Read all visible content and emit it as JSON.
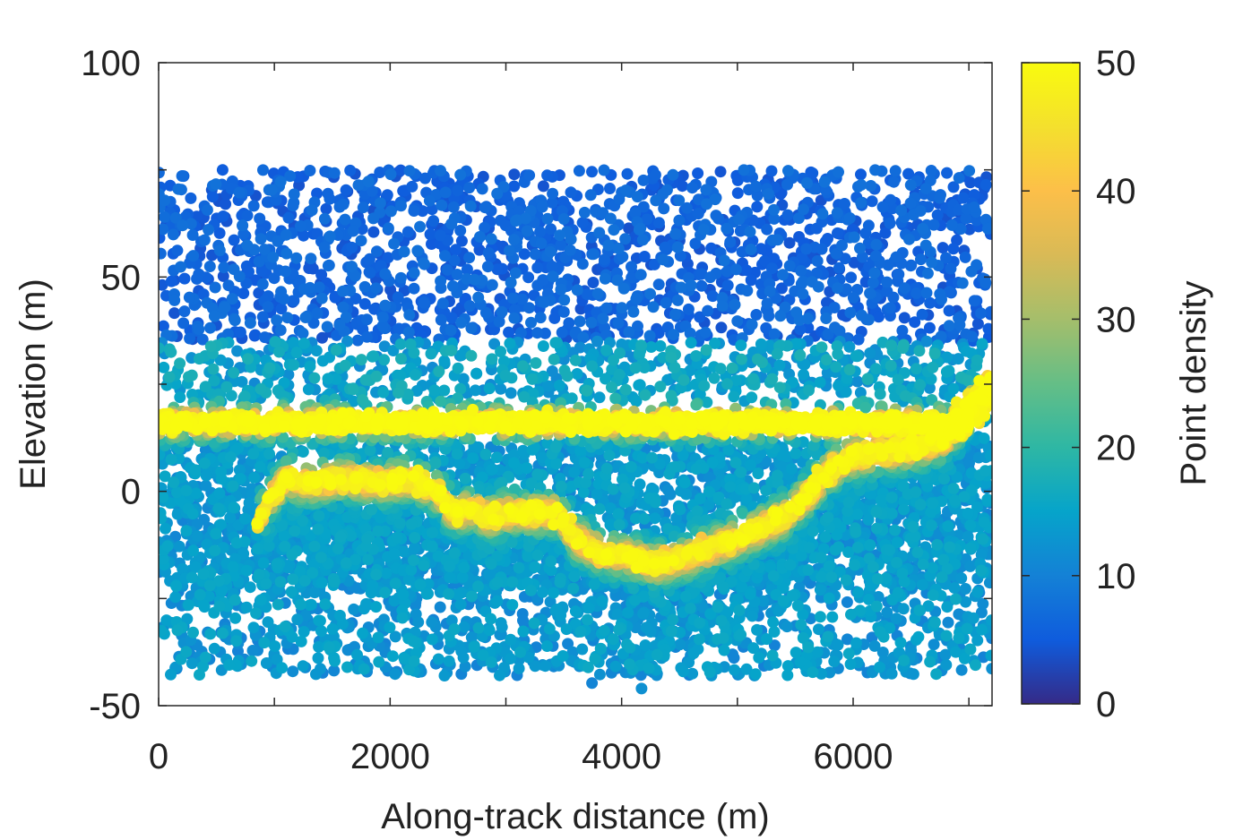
{
  "chart_data": {
    "type": "scatter",
    "xlabel": "Along-track distance (m)",
    "ylabel": "Elevation (m)",
    "xlim": [
      0,
      7200
    ],
    "ylim": [
      -50,
      100
    ],
    "xticks": [
      0,
      2000,
      4000,
      6000
    ],
    "yticks": [
      -50,
      0,
      50,
      100
    ],
    "noise_band": {
      "x_range": [
        0,
        7200
      ],
      "y_range": [
        -43,
        75
      ]
    },
    "water_surface": {
      "name": "",
      "x": [
        0,
        7000
      ],
      "y": [
        16,
        16
      ],
      "density": 50
    },
    "bed_profile": {
      "x": [
        850,
        950,
        1100,
        1300,
        1600,
        1900,
        2200,
        2400,
        2550,
        2700,
        2850,
        3000,
        3200,
        3450,
        3600,
        3800,
        4000,
        4300,
        4600,
        5000,
        5400,
        5600,
        5800,
        6000,
        6200,
        6500,
        6800,
        6900
      ],
      "y": [
        -8,
        -2,
        3,
        2,
        3,
        2,
        3,
        0,
        -5,
        -4,
        -6,
        -5,
        -5,
        -5,
        -11,
        -14,
        -15,
        -17,
        -15,
        -11,
        -6,
        -1,
        5,
        8,
        9,
        10,
        12,
        16
      ],
      "density": 45
    },
    "bank_rise": {
      "x": [
        6900,
        7200
      ],
      "y": [
        16,
        24
      ]
    },
    "colorbar": {
      "label": "Point density",
      "range": [
        0,
        50
      ],
      "ticks": [
        0,
        10,
        20,
        30,
        40,
        50
      ],
      "colormap": "parula"
    },
    "grid": false
  },
  "axis_color": "#262626"
}
